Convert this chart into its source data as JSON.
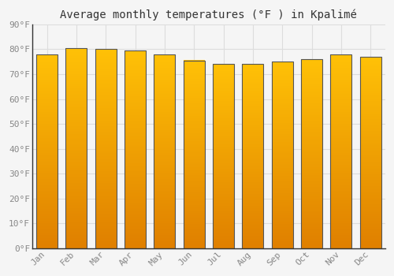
{
  "title": "Average monthly temperatures (°F ) in Kpalimé",
  "months": [
    "Jan",
    "Feb",
    "Mar",
    "Apr",
    "May",
    "Jun",
    "Jul",
    "Aug",
    "Sep",
    "Oct",
    "Nov",
    "Dec"
  ],
  "values": [
    78,
    80.5,
    80,
    79.5,
    78,
    75.5,
    74,
    74,
    75,
    76,
    78,
    77
  ],
  "ylim": [
    0,
    90
  ],
  "yticks": [
    0,
    10,
    20,
    30,
    40,
    50,
    60,
    70,
    80,
    90
  ],
  "bar_color_light": "#FFC107",
  "bar_color_dark": "#E08000",
  "bar_edge_color": "#555555",
  "background_color": "#F5F5F5",
  "plot_bg_color": "#F5F5F5",
  "grid_color": "#DDDDDD",
  "title_fontsize": 10,
  "tick_fontsize": 8,
  "tick_color": "#888888"
}
